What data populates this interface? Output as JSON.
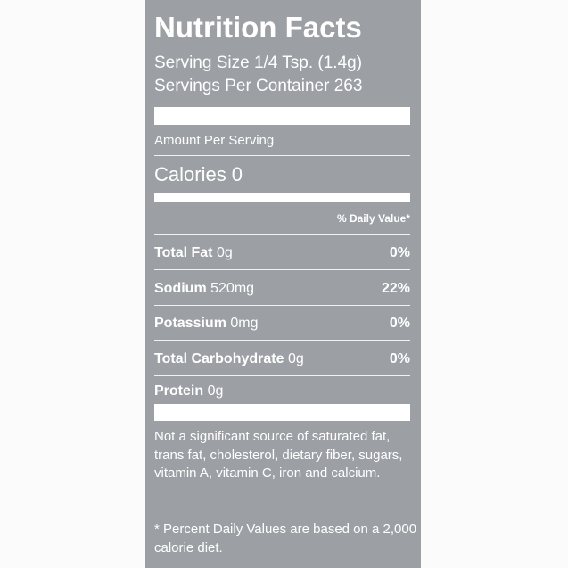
{
  "header": {
    "title": "Nutrition Facts",
    "serving_size": "Serving Size 1/4 Tsp. (1.4g)",
    "servings_per_container": "Servings Per Container 263"
  },
  "amount_per_serving": "Amount Per Serving",
  "calories": "Calories 0",
  "daily_value_header": "% Daily Value*",
  "nutrients": [
    {
      "name": "Total Fat",
      "amount": "0g",
      "percent": "0%"
    },
    {
      "name": "Sodium",
      "amount": "520mg",
      "percent": "22%"
    },
    {
      "name": "Potassium",
      "amount": "0mg",
      "percent": "0%"
    },
    {
      "name": "Total Carbohydrate",
      "amount": "0g",
      "percent": "0%"
    },
    {
      "name": "Protein",
      "amount": "0g"
    }
  ],
  "note": "Not a significant source of saturated fat, trans fat, cholesterol, dietary fiber, sugars, vitamin A, vitamin C, iron and calcium.",
  "footnote": "* Percent Daily Values are based on a 2,000 calorie diet."
}
